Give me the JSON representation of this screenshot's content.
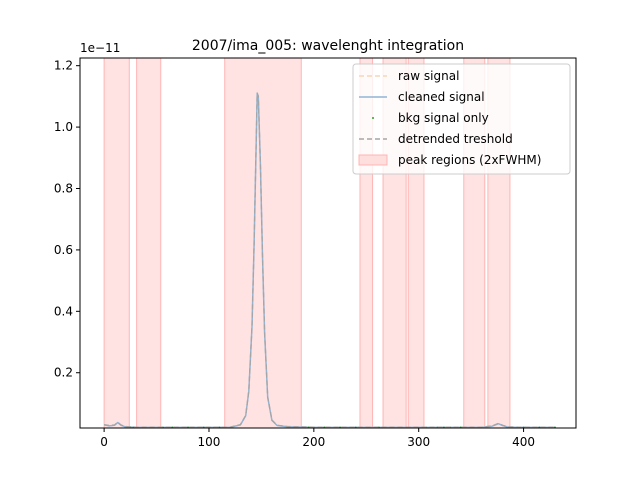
{
  "chart_data": {
    "type": "line",
    "title": "2007/ima_005: wavelenght integration",
    "xlabel": "",
    "ylabel": "",
    "xlim": [
      -23,
      450
    ],
    "ylim": [
      0.02,
      1.225
    ],
    "y_scale_label": "1e−11",
    "x_ticks": [
      0,
      100,
      200,
      300,
      400
    ],
    "x_tick_labels": [
      "0",
      "100",
      "200",
      "300",
      "400"
    ],
    "y_ticks": [
      0.2,
      0.4,
      0.6,
      0.8,
      1.0,
      1.2
    ],
    "y_tick_labels": [
      "0.2",
      "0.4",
      "0.6",
      "0.8",
      "1.0",
      "1.2"
    ],
    "grid": false,
    "legend_position": "top-right",
    "legend": [
      {
        "label": "raw signal",
        "style": "dashed-line",
        "color": "#f5d7b5"
      },
      {
        "label": "cleaned signal",
        "style": "line",
        "color": "#90b4d6"
      },
      {
        "label": "bkg signal only",
        "style": "dot",
        "color": "#2ca02c"
      },
      {
        "label": "detrended treshold",
        "style": "dashed-line",
        "color": "#a5a5a5"
      },
      {
        "label": "peak regions (2xFWHM)",
        "style": "patch",
        "color": "#ffdede"
      }
    ],
    "peak_regions": [
      {
        "start": 0,
        "end": 24
      },
      {
        "start": 31,
        "end": 54
      },
      {
        "start": 115,
        "end": 188
      },
      {
        "start": 244,
        "end": 256
      },
      {
        "start": 266,
        "end": 288
      },
      {
        "start": 290,
        "end": 305
      },
      {
        "start": 343,
        "end": 363
      },
      {
        "start": 366,
        "end": 387
      }
    ],
    "series": [
      {
        "name": "raw signal",
        "color": "#f5d7b5",
        "x": [
          0,
          5,
          10,
          13,
          16,
          20,
          30,
          60,
          100,
          120,
          130,
          135,
          138,
          141,
          143,
          145,
          146,
          147,
          149,
          151,
          153,
          156,
          160,
          165,
          175,
          200,
          260,
          300,
          360,
          370,
          376,
          380,
          385,
          395,
          430
        ],
        "y": [
          0.03,
          0.027,
          0.029,
          0.038,
          0.029,
          0.024,
          0.022,
          0.022,
          0.022,
          0.022,
          0.03,
          0.06,
          0.14,
          0.35,
          0.62,
          0.95,
          1.11,
          1.1,
          0.88,
          0.58,
          0.33,
          0.12,
          0.045,
          0.028,
          0.024,
          0.022,
          0.022,
          0.022,
          0.022,
          0.026,
          0.034,
          0.028,
          0.023,
          0.022,
          0.022
        ]
      },
      {
        "name": "cleaned signal",
        "color": "#90b4d6",
        "x": [
          0,
          5,
          10,
          13,
          16,
          20,
          30,
          60,
          100,
          120,
          130,
          135,
          138,
          141,
          143,
          145,
          146,
          147,
          149,
          151,
          153,
          156,
          160,
          165,
          175,
          200,
          260,
          300,
          360,
          370,
          376,
          380,
          385,
          395,
          430
        ],
        "y": [
          0.03,
          0.027,
          0.029,
          0.038,
          0.029,
          0.024,
          0.022,
          0.022,
          0.022,
          0.022,
          0.03,
          0.06,
          0.14,
          0.35,
          0.62,
          0.95,
          1.11,
          1.1,
          0.88,
          0.58,
          0.33,
          0.12,
          0.045,
          0.028,
          0.024,
          0.022,
          0.022,
          0.022,
          0.022,
          0.026,
          0.034,
          0.028,
          0.023,
          0.022,
          0.022
        ]
      },
      {
        "name": "bkg signal only",
        "color": "#2ca02c",
        "x": [
          25,
          28,
          56,
          60,
          65,
          70,
          75,
          80,
          85,
          90,
          95,
          100,
          105,
          110,
          190,
          195,
          200,
          205,
          210,
          215,
          220,
          225,
          230,
          235,
          240,
          258,
          262,
          307,
          312,
          318,
          324,
          330,
          336,
          340,
          389,
          395,
          400,
          405,
          410,
          415,
          420,
          425,
          430
        ],
        "y": [
          0.022,
          0.022,
          0.022,
          0.022,
          0.022,
          0.022,
          0.022,
          0.022,
          0.022,
          0.022,
          0.022,
          0.022,
          0.022,
          0.022,
          0.022,
          0.022,
          0.022,
          0.022,
          0.022,
          0.022,
          0.022,
          0.022,
          0.022,
          0.022,
          0.022,
          0.022,
          0.022,
          0.022,
          0.022,
          0.022,
          0.022,
          0.022,
          0.022,
          0.022,
          0.022,
          0.022,
          0.022,
          0.022,
          0.022,
          0.022,
          0.022,
          0.022,
          0.022
        ]
      },
      {
        "name": "detrended treshold",
        "color": "#a5a5a5",
        "x": [
          0,
          5,
          10,
          13,
          16,
          20,
          30,
          60,
          100,
          120,
          130,
          135,
          138,
          141,
          143,
          145,
          146,
          147,
          149,
          151,
          153,
          156,
          160,
          165,
          175,
          200,
          260,
          300,
          360,
          370,
          376,
          380,
          385,
          395,
          430
        ],
        "y": [
          0.031,
          0.028,
          0.03,
          0.039,
          0.03,
          0.025,
          0.023,
          0.023,
          0.023,
          0.023,
          0.031,
          0.061,
          0.141,
          0.351,
          0.621,
          0.951,
          1.111,
          1.101,
          0.881,
          0.581,
          0.331,
          0.121,
          0.046,
          0.029,
          0.025,
          0.023,
          0.023,
          0.023,
          0.023,
          0.027,
          0.035,
          0.029,
          0.024,
          0.023,
          0.023
        ]
      }
    ]
  }
}
